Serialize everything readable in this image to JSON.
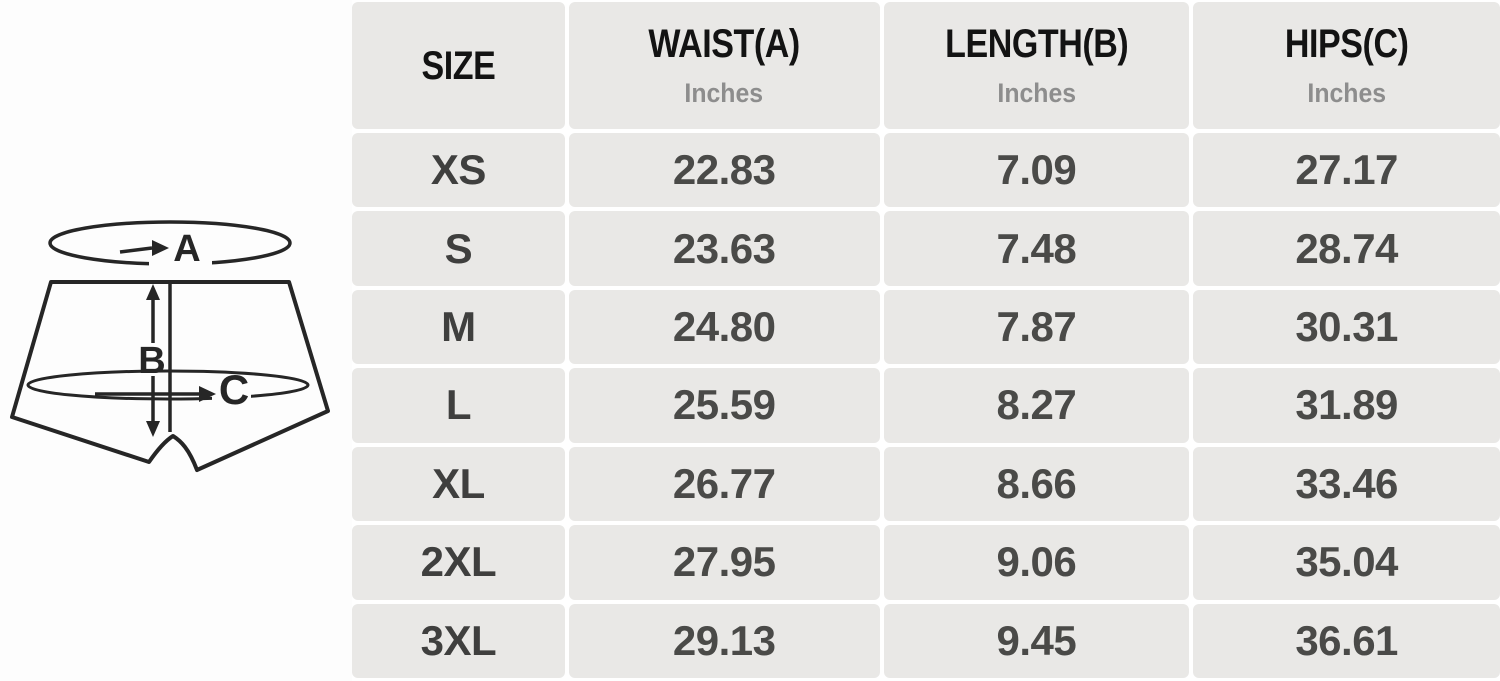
{
  "chart_data": {
    "type": "table",
    "columns": [
      "SIZE",
      "WAIST(A)",
      "LENGTH(B)",
      "HIPS(C)"
    ],
    "units": [
      "",
      "Inches",
      "Inches",
      "Inches"
    ],
    "rows": [
      [
        "XS",
        "22.83",
        "7.09",
        "27.17"
      ],
      [
        "S",
        "23.63",
        "7.48",
        "28.74"
      ],
      [
        "M",
        "24.80",
        "7.87",
        "30.31"
      ],
      [
        "L",
        "25.59",
        "8.27",
        "31.89"
      ],
      [
        "XL",
        "26.77",
        "8.66",
        "33.46"
      ],
      [
        "2XL",
        "27.95",
        "9.06",
        "35.04"
      ],
      [
        "3XL",
        "29.13",
        "9.45",
        "36.61"
      ]
    ],
    "layout": "header row on top, 7 data rows, light gray cells separated by white gutters"
  },
  "diagram": {
    "waist_label": "A",
    "length_label": "B",
    "hips_label": "C"
  },
  "colors": {
    "line": "#262626",
    "cell_bg": "#e9e8e6",
    "gutter": "#ffffff",
    "page_bg": "#fdfdfd",
    "header_text": "#131313",
    "unit_text": "#8d8d8d",
    "value_text": "#4a4a48"
  }
}
